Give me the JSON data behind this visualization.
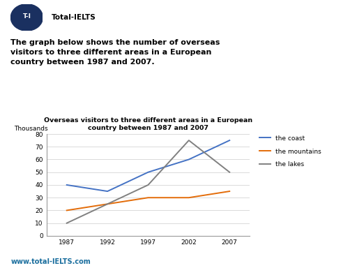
{
  "title_line1": "Overseas visitors to three different areas in a European",
  "title_line2": "country between 1987 and 2007",
  "ylabel": "Thousands",
  "years": [
    1987,
    1992,
    1997,
    2002,
    2007
  ],
  "coast": [
    40,
    35,
    50,
    60,
    75
  ],
  "mountains": [
    20,
    25,
    30,
    30,
    35
  ],
  "lakes": [
    10,
    25,
    40,
    75,
    50
  ],
  "coast_color": "#4472C4",
  "mountains_color": "#E36C09",
  "lakes_color": "#808080",
  "ylim": [
    0,
    80
  ],
  "yticks": [
    0,
    10,
    20,
    30,
    40,
    50,
    60,
    70,
    80
  ],
  "legend_labels": [
    "the coast",
    "the mountains",
    "the lakes"
  ],
  "background_color": "#ffffff",
  "logo_text": "T-I",
  "brand_text": "Total-IELTS",
  "header_text": "The graph below shows the number of overseas\nvisitors to three different areas in a European\ncountry between 1987 and 2007.",
  "footer_text": "www.total-IELTS.com",
  "logo_bg_color": "#1a3060",
  "footer_color": "#1a6e9e"
}
